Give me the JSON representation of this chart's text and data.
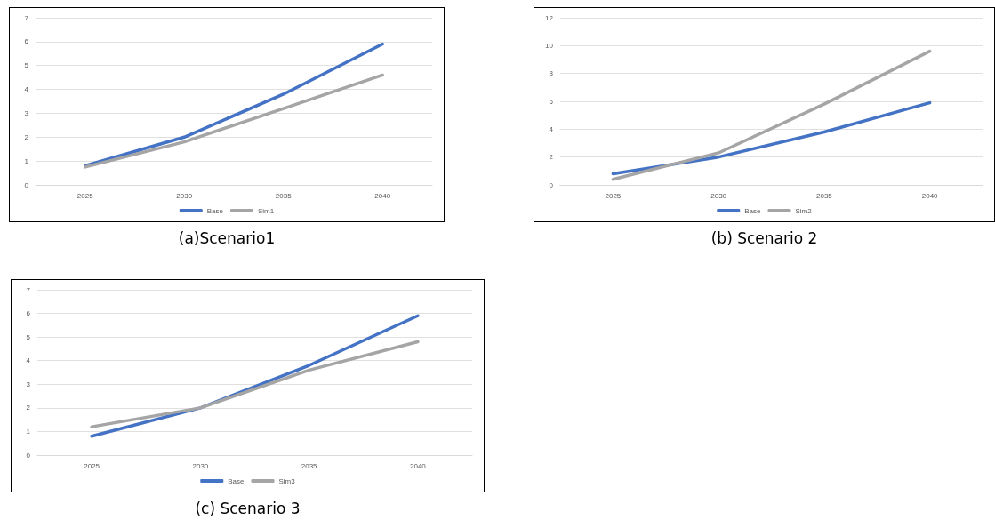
{
  "chart_data": [
    {
      "type": "line",
      "title": "(a)Scenario1",
      "categories": [
        "2025",
        "2030",
        "2035",
        "2040"
      ],
      "series": [
        {
          "name": "Base",
          "color": "#4472c4",
          "values": [
            0.8,
            2.0,
            3.8,
            5.9
          ]
        },
        {
          "name": "Sim1",
          "color": "#a5a5a5",
          "values": [
            0.75,
            1.8,
            3.2,
            4.6
          ]
        }
      ],
      "ylim": [
        0,
        7
      ],
      "yticks": [
        0,
        1,
        2,
        3,
        4,
        5,
        6,
        7
      ],
      "grid": "y",
      "legend": "bottom",
      "marker": "none",
      "line_style": "solid"
    },
    {
      "type": "line",
      "title": "(b) Scenario 2",
      "categories": [
        "2025",
        "2030",
        "2035",
        "2040"
      ],
      "series": [
        {
          "name": "Base",
          "color": "#4472c4",
          "values": [
            0.8,
            2.0,
            3.8,
            5.9
          ]
        },
        {
          "name": "Sim2",
          "color": "#a5a5a5",
          "values": [
            0.4,
            2.3,
            5.8,
            9.6
          ]
        }
      ],
      "ylim": [
        0,
        12
      ],
      "yticks": [
        0,
        2,
        4,
        6,
        8,
        10,
        12
      ],
      "grid": "y",
      "legend": "bottom",
      "marker": "none",
      "line_style": "solid"
    },
    {
      "type": "line",
      "title": "(c) Scenario 3",
      "categories": [
        "2025",
        "2030",
        "2035",
        "2040"
      ],
      "series": [
        {
          "name": "Base",
          "color": "#4472c4",
          "values": [
            0.8,
            2.0,
            3.8,
            5.9
          ]
        },
        {
          "name": "Sim3",
          "color": "#a5a5a5",
          "values": [
            1.2,
            2.0,
            3.6,
            4.8
          ]
        }
      ],
      "ylim": [
        0,
        7
      ],
      "yticks": [
        0,
        1,
        2,
        3,
        4,
        5,
        6,
        7
      ],
      "grid": "y",
      "legend": "bottom",
      "marker": "none",
      "line_style": "solid"
    }
  ]
}
